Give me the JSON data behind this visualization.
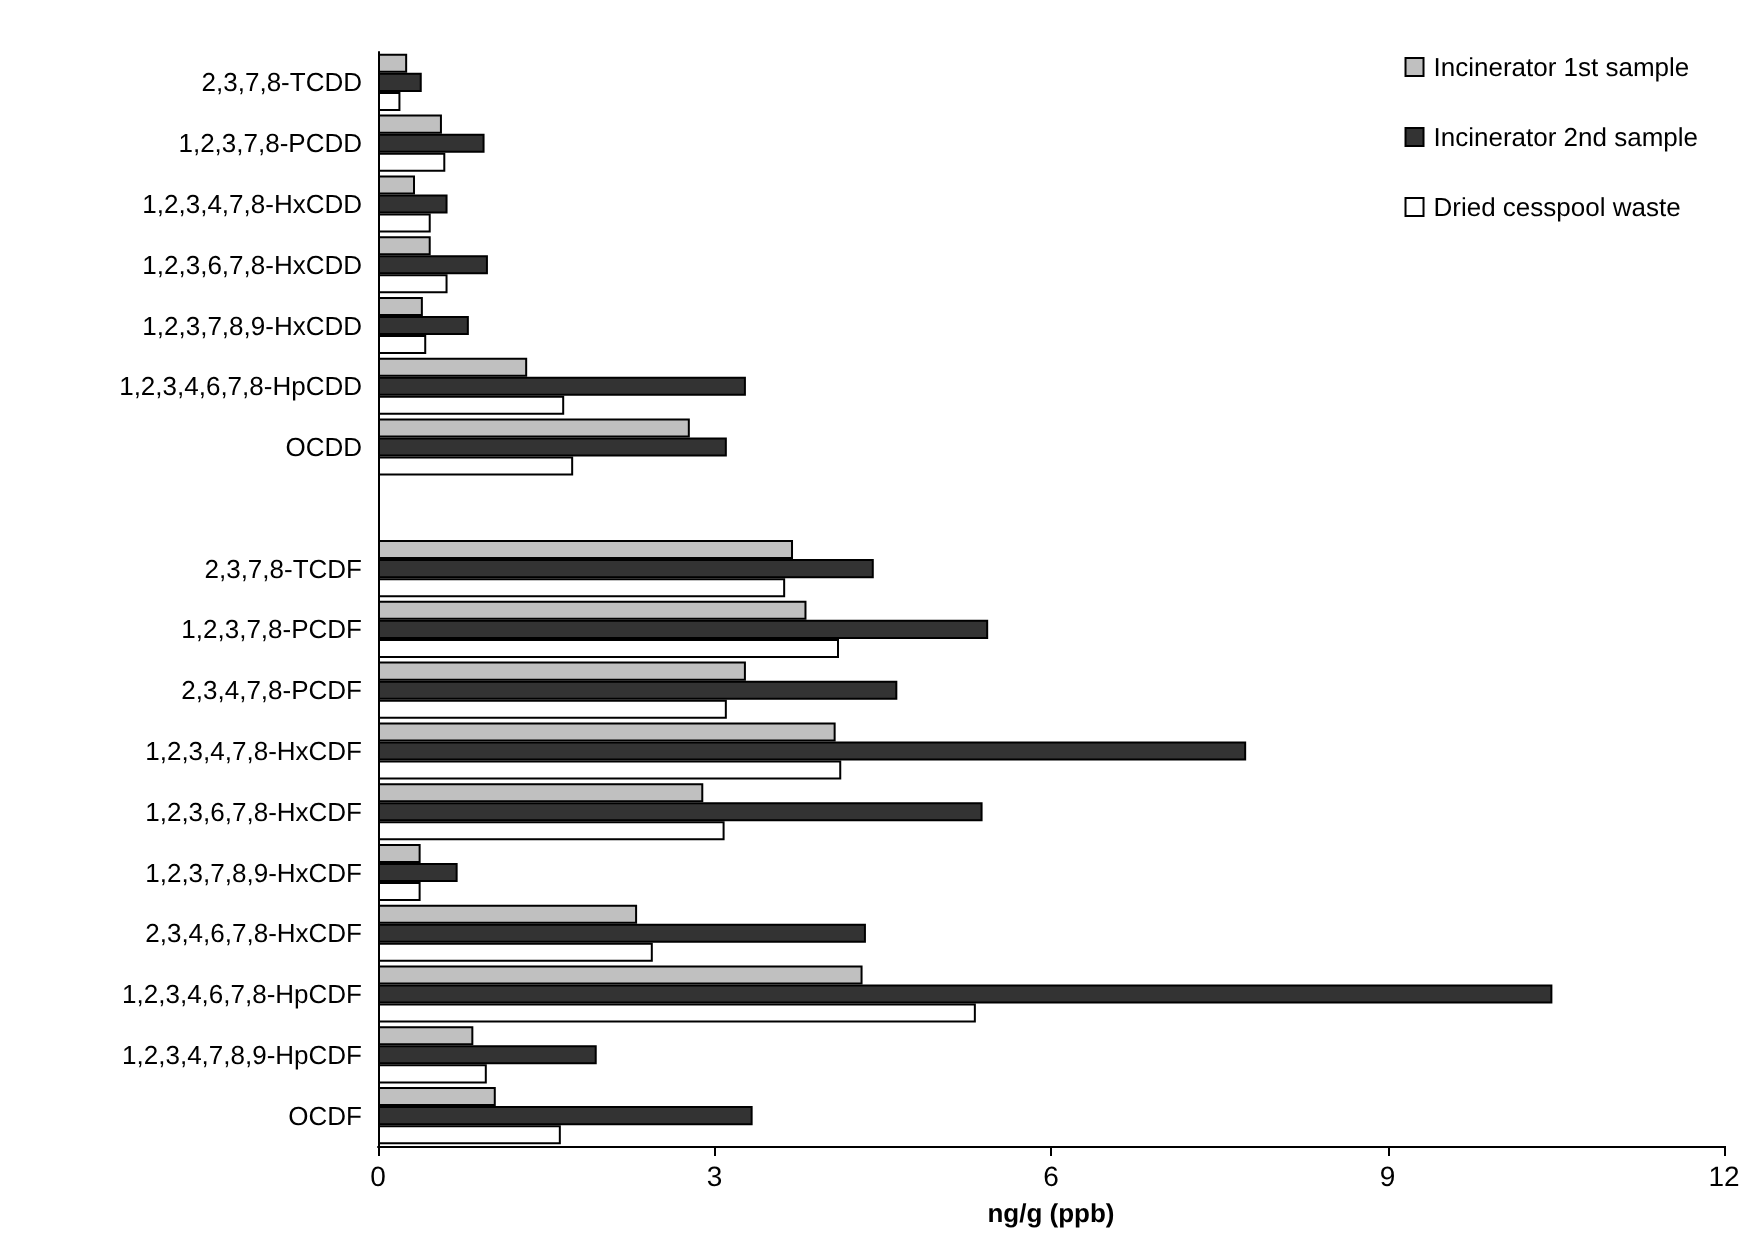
{
  "chart_data": {
    "type": "bar",
    "orientation": "horizontal",
    "xlabel": "ng/g (ppb)",
    "categories": [
      "2,3,7,8-TCDD",
      "1,2,3,7,8-PCDD",
      "1,2,3,4,7,8-HxCDD",
      "1,2,3,6,7,8-HxCDD",
      "1,2,3,7,8,9-HxCDD",
      "1,2,3,4,6,7,8-HpCDD",
      "OCDD",
      null,
      "2,3,7,8-TCDF",
      "1,2,3,7,8-PCDF",
      "2,3,4,7,8-PCDF",
      "1,2,3,4,7,8-HxCDF",
      "1,2,3,6,7,8-HxCDF",
      "1,2,3,7,8,9-HxCDF",
      "2,3,4,6,7,8-HxCDF",
      "1,2,3,4,6,7,8-HpCDF",
      "1,2,3,4,7,8,9-HpCDF",
      "OCDF"
    ],
    "series": [
      {
        "name": "Incinerator 1st sample",
        "color": "#c0c0c0",
        "values": [
          0.26,
          0.57,
          0.33,
          0.47,
          0.4,
          1.33,
          2.78,
          null,
          3.7,
          3.82,
          3.28,
          4.08,
          2.9,
          0.38,
          2.31,
          4.32,
          0.85,
          1.05
        ]
      },
      {
        "name": "Incinerator 2nd sample",
        "color": "#333333",
        "values": [
          0.39,
          0.95,
          0.62,
          0.98,
          0.81,
          3.28,
          3.11,
          null,
          4.42,
          5.44,
          4.63,
          7.74,
          5.39,
          0.71,
          4.35,
          10.47,
          1.95,
          3.34
        ]
      },
      {
        "name": "Dried cesspool waste",
        "color": "#ffffff",
        "values": [
          0.2,
          0.6,
          0.47,
          0.62,
          0.43,
          1.66,
          1.74,
          null,
          3.63,
          4.11,
          3.11,
          4.13,
          3.09,
          0.38,
          2.45,
          5.33,
          0.97,
          1.63
        ]
      }
    ],
    "xlim": [
      0,
      12
    ],
    "xticks": [
      0,
      3,
      6,
      9,
      12
    ],
    "grid": false,
    "legend": "top right"
  }
}
